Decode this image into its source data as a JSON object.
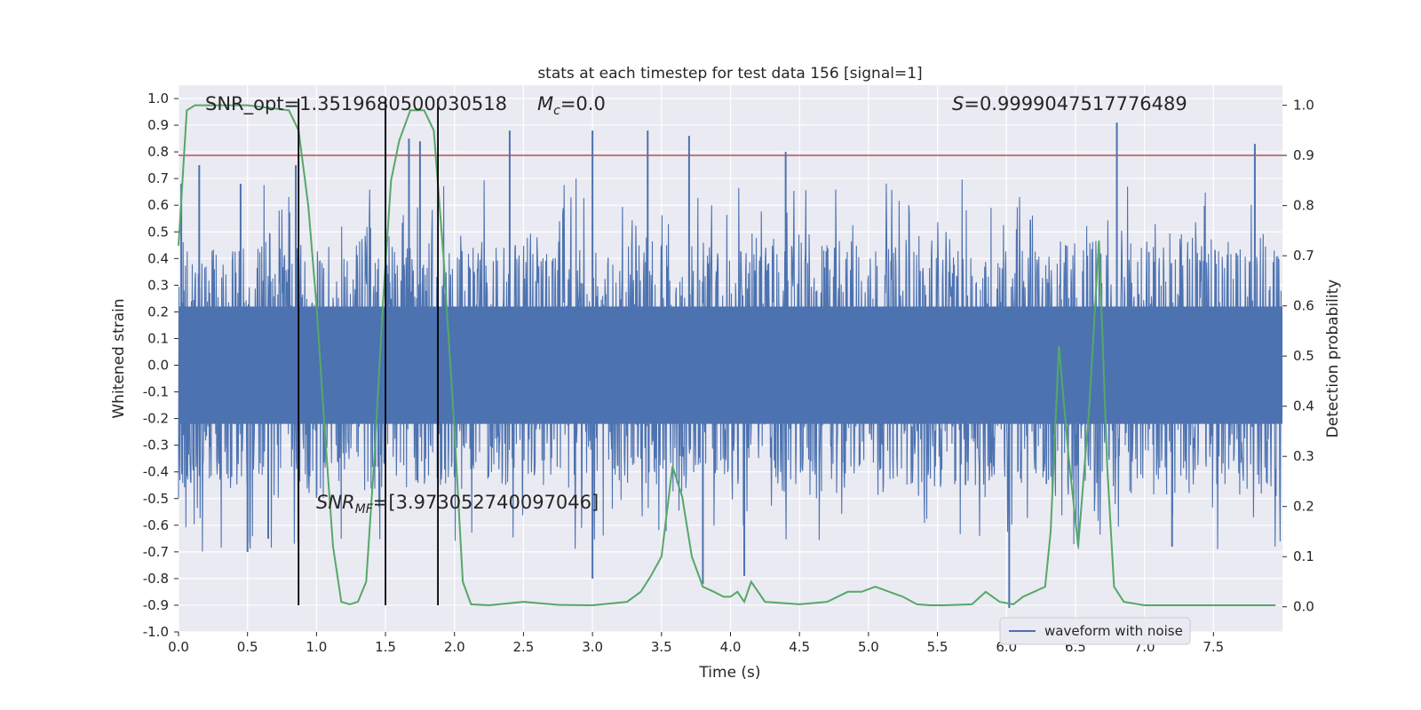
{
  "chart_data": {
    "type": "line",
    "title": "stats at each timestep for test data 156 [signal=1]",
    "xlabel": "Time (s)",
    "ylabel_left": "Whitened strain",
    "ylabel_right": "Detection probability",
    "xlim": [
      0.0,
      8.0
    ],
    "ylim_left": [
      -1.0,
      1.05
    ],
    "ylim_right": [
      -0.05,
      1.04
    ],
    "x_ticks": [
      "0.0",
      "0.5",
      "1.0",
      "1.5",
      "2.0",
      "2.5",
      "3.0",
      "3.5",
      "4.0",
      "4.5",
      "5.0",
      "5.5",
      "6.0",
      "6.5",
      "7.0",
      "7.5"
    ],
    "x_tick_values": [
      0.0,
      0.5,
      1.0,
      1.5,
      2.0,
      2.5,
      3.0,
      3.5,
      4.0,
      4.5,
      5.0,
      5.5,
      6.0,
      6.5,
      7.0,
      7.5
    ],
    "y_left_ticks": [
      "1.0",
      "0.9",
      "0.8",
      "0.7",
      "0.6",
      "0.5",
      "0.4",
      "0.3",
      "0.2",
      "0.1",
      "0.0",
      "-0.1",
      "-0.2",
      "-0.3",
      "-0.4",
      "-0.5",
      "-0.6",
      "-0.7",
      "-0.8",
      "-0.9",
      "-1.0"
    ],
    "y_left_tick_values": [
      1.0,
      0.9,
      0.8,
      0.7,
      0.6,
      0.5,
      0.4,
      0.3,
      0.2,
      0.1,
      0.0,
      -0.1,
      -0.2,
      -0.3,
      -0.4,
      -0.5,
      -0.6,
      -0.7,
      -0.8,
      -0.9,
      -1.0
    ],
    "y_right_ticks": [
      "1.0",
      "0.9",
      "0.8",
      "0.7",
      "0.6",
      "0.5",
      "0.4",
      "0.3",
      "0.2",
      "0.1",
      "0.0"
    ],
    "y_right_tick_values": [
      1.0,
      0.9,
      0.8,
      0.7,
      0.6,
      0.5,
      0.4,
      0.3,
      0.2,
      0.1,
      0.0
    ],
    "annotations": {
      "snr_opt": "SNR_opt=1.3519680500030518",
      "mc_symbol": "M",
      "mc_sub": "c",
      "mc_value": "=0.0",
      "s_symbol": "S",
      "s_value": "=0.9999047517776489",
      "snr_mf_symbol": "SNR",
      "snr_mf_sub": "MF",
      "snr_mf_value": "=[3.973052740097046]"
    },
    "threshold": {
      "value": 0.9,
      "axis": "right",
      "color": "#c44e52"
    },
    "vertical_lines": [
      0.87,
      1.5,
      1.88
    ],
    "vertical_line_range": [
      -0.9,
      1.0
    ],
    "legend": {
      "label": "waveform with noise",
      "position": "lower right"
    },
    "waveform": {
      "name": "waveform with noise",
      "color": "#4c72b0",
      "band_typical_amplitude": 0.45,
      "spikes": [
        {
          "x": 0.02,
          "y": 0.68
        },
        {
          "x": 0.15,
          "y": 0.75
        },
        {
          "x": 0.45,
          "y": 0.68
        },
        {
          "x": 0.85,
          "y": 0.75
        },
        {
          "x": 1.5,
          "y": 1.0
        },
        {
          "x": 1.67,
          "y": 0.85
        },
        {
          "x": 1.75,
          "y": 0.84
        },
        {
          "x": 2.4,
          "y": 0.88
        },
        {
          "x": 3.0,
          "y": 0.88
        },
        {
          "x": 3.4,
          "y": 0.88
        },
        {
          "x": 3.7,
          "y": 0.86
        },
        {
          "x": 4.4,
          "y": 0.8
        },
        {
          "x": 6.8,
          "y": 0.91
        },
        {
          "x": 7.8,
          "y": 0.83
        },
        {
          "x": 0.5,
          "y": -0.7
        },
        {
          "x": 0.65,
          "y": -0.65
        },
        {
          "x": 3.0,
          "y": -0.8
        },
        {
          "x": 3.8,
          "y": -0.82
        },
        {
          "x": 4.1,
          "y": -0.79
        },
        {
          "x": 6.02,
          "y": -0.91
        },
        {
          "x": 7.2,
          "y": -0.68
        }
      ]
    },
    "probability": {
      "name": "detection probability",
      "color": "#55a868",
      "x": [
        0.0,
        0.06,
        0.12,
        0.5,
        0.8,
        0.87,
        0.94,
        1.0,
        1.06,
        1.12,
        1.18,
        1.24,
        1.3,
        1.36,
        1.42,
        1.48,
        1.54,
        1.6,
        1.68,
        1.78,
        1.85,
        1.92,
        2.0,
        2.06,
        2.12,
        2.25,
        2.5,
        2.75,
        3.0,
        3.25,
        3.35,
        3.42,
        3.5,
        3.58,
        3.65,
        3.72,
        3.8,
        3.88,
        3.95,
        4.0,
        4.05,
        4.1,
        4.15,
        4.2,
        4.25,
        4.5,
        4.7,
        4.85,
        4.95,
        5.05,
        5.15,
        5.25,
        5.35,
        5.45,
        5.55,
        5.75,
        5.85,
        5.95,
        6.05,
        6.12,
        6.2,
        6.28,
        6.32,
        6.38,
        6.45,
        6.52,
        6.6,
        6.67,
        6.73,
        6.78,
        6.85,
        7.0,
        7.5,
        7.95
      ],
      "y": [
        0.72,
        0.99,
        1.0,
        1.0,
        0.99,
        0.95,
        0.8,
        0.6,
        0.35,
        0.12,
        0.01,
        0.005,
        0.01,
        0.05,
        0.3,
        0.6,
        0.85,
        0.93,
        0.99,
        0.99,
        0.95,
        0.7,
        0.35,
        0.05,
        0.005,
        0.003,
        0.01,
        0.004,
        0.003,
        0.01,
        0.03,
        0.06,
        0.1,
        0.28,
        0.22,
        0.1,
        0.04,
        0.03,
        0.02,
        0.02,
        0.03,
        0.01,
        0.05,
        0.03,
        0.01,
        0.005,
        0.01,
        0.03,
        0.03,
        0.04,
        0.03,
        0.02,
        0.005,
        0.003,
        0.003,
        0.005,
        0.03,
        0.01,
        0.005,
        0.02,
        0.03,
        0.04,
        0.15,
        0.52,
        0.3,
        0.12,
        0.4,
        0.73,
        0.28,
        0.04,
        0.01,
        0.003,
        0.003,
        0.003
      ]
    }
  }
}
